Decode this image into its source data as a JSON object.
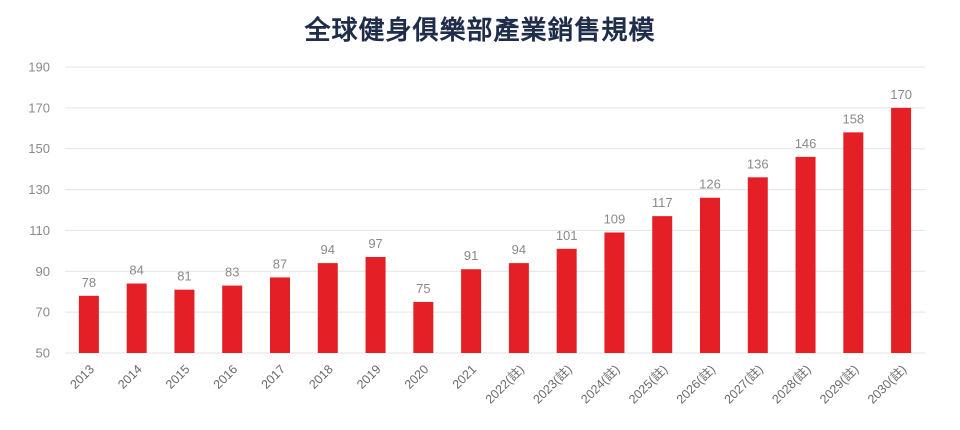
{
  "chart_data": {
    "type": "bar",
    "title": "全球健身俱樂部產業銷售規模",
    "xlabel": "",
    "ylabel": "",
    "categories": [
      "2013",
      "2014",
      "2015",
      "2016",
      "2017",
      "2018",
      "2019",
      "2020",
      "2021",
      "2022(註)",
      "2023(註)",
      "2024(註)",
      "2025(註)",
      "2026(註)",
      "2027(註)",
      "2028(註)",
      "2029(註)",
      "2030(註)"
    ],
    "values": [
      78,
      84,
      81,
      83,
      87,
      94,
      97,
      75,
      91,
      94,
      101,
      109,
      117,
      126,
      136,
      146,
      158,
      170
    ],
    "ylim": [
      50,
      190
    ],
    "yticks": [
      50,
      70,
      90,
      110,
      130,
      150,
      170,
      190
    ],
    "grid": true,
    "bar_color": "#e41f26",
    "data_labels": true
  }
}
